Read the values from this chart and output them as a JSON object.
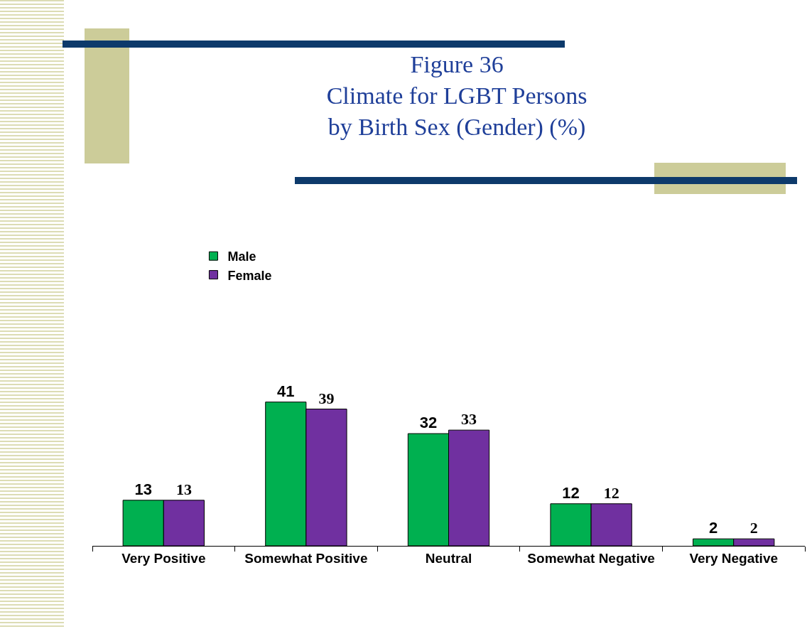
{
  "chart_data": {
    "type": "bar",
    "title": "Figure 36\nClimate for LGBT Persons\nby Birth Sex (Gender) (%)",
    "categories": [
      "Very Positive",
      "Somewhat Positive",
      "Neutral",
      "Somewhat Negative",
      "Very Negative"
    ],
    "series": [
      {
        "name": "Male",
        "color": "#00b050",
        "values": [
          13,
          41,
          32,
          12,
          2
        ]
      },
      {
        "name": "Female",
        "color": "#7030a0",
        "values": [
          13,
          39,
          33,
          12,
          2
        ]
      }
    ],
    "data_labels": true,
    "legend": "top left"
  }
}
